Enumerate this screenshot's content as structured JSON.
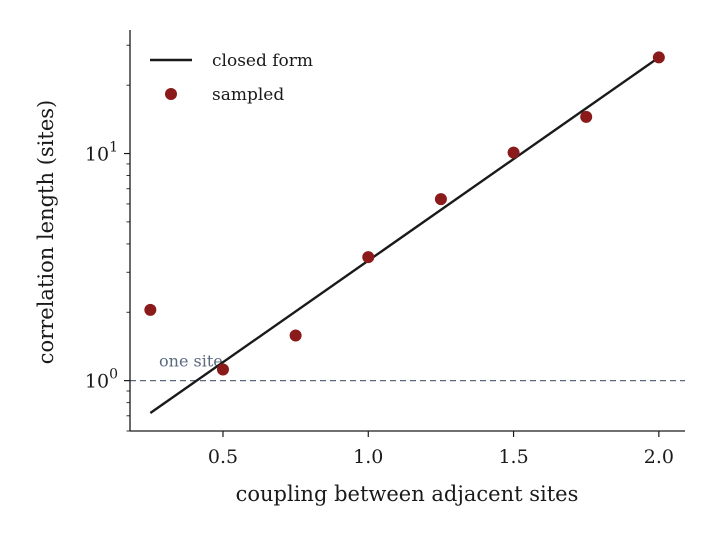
{
  "chart_data": {
    "type": "line",
    "xlabel": "coupling between adjacent sites",
    "ylabel": "correlation length (sites)",
    "yscale": "log",
    "xlim": [
      0.18,
      2.09
    ],
    "ylim": [
      0.6,
      35
    ],
    "xticks": [
      {
        "value": 0.5,
        "label": "0.5"
      },
      {
        "value": 1.0,
        "label": "1.0"
      },
      {
        "value": 1.5,
        "label": "1.5"
      },
      {
        "value": 2.0,
        "label": "2.0"
      }
    ],
    "yticks": [
      {
        "value": 1,
        "base": "10",
        "exp": "0"
      },
      {
        "value": 10,
        "base": "10",
        "exp": "1"
      }
    ],
    "grid": false,
    "legend_position": "top-left",
    "series": [
      {
        "name": "closed form",
        "kind": "line",
        "color": "#1a1a1a",
        "x": [
          0.25,
          2.0
        ],
        "y": [
          0.72,
          26.5
        ]
      },
      {
        "name": "sampled",
        "kind": "scatter",
        "color": "#8b1a1a",
        "x": [
          0.25,
          0.5,
          0.75,
          1.0,
          1.25,
          1.5,
          1.75,
          2.0
        ],
        "y": [
          2.05,
          1.12,
          1.58,
          3.5,
          6.3,
          10.1,
          14.5,
          26.5
        ]
      }
    ],
    "reference_line": {
      "y": 1.0,
      "label": "one site",
      "color": "#5a6a80",
      "style": "dashed"
    }
  }
}
